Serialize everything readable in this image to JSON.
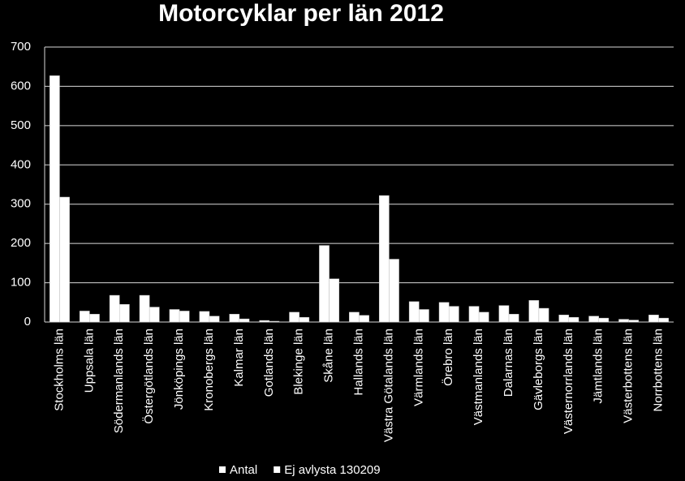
{
  "chart_data": {
    "type": "bar",
    "title": "Motorcyklar per län 2012",
    "categories": [
      "Stockholms län",
      "Uppsala län",
      "Södermanlands län",
      "Östergötlands län",
      "Jönköpings län",
      "Kronobergs län",
      "Kalmar län",
      "Gotlands län",
      "Blekinge län",
      "Skåne län",
      "Hallands län",
      "Västra Götalands län",
      "Värmlands län",
      "Örebro län",
      "Västmanlands län",
      "Dalarnas län",
      "Gävleborgs län",
      "Västernorrlands län",
      "Jämtlands län",
      "Västerbottens län",
      "Norrbottens län"
    ],
    "series": [
      {
        "name": "Antal",
        "color": "#ffffff",
        "values": [
          627,
          28,
          68,
          68,
          32,
          27,
          20,
          4,
          25,
          195,
          25,
          322,
          52,
          50,
          40,
          42,
          55,
          18,
          15,
          7,
          18
        ]
      },
      {
        "name": "Ej avlysta 130209",
        "color": "#ffffff",
        "values": [
          318,
          20,
          45,
          38,
          28,
          15,
          8,
          2,
          12,
          110,
          17,
          160,
          32,
          40,
          25,
          20,
          35,
          12,
          10,
          5,
          10
        ]
      }
    ],
    "ylim": [
      0,
      700
    ],
    "yticks": [
      0,
      100,
      200,
      300,
      400,
      500,
      600,
      700
    ],
    "grid": true,
    "legend": "bottom"
  }
}
